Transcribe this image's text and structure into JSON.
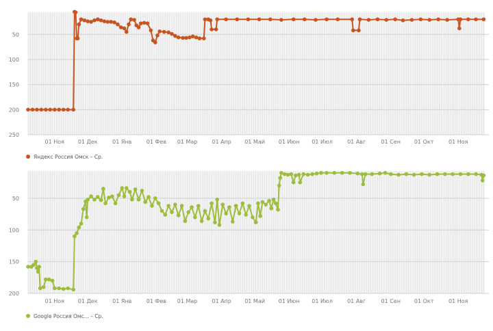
{
  "chart_data": [
    {
      "type": "line",
      "ylim": [
        6,
        250
      ],
      "y_reversed": true,
      "y_ticks": [
        50,
        100,
        150,
        200,
        250
      ],
      "x_tick_labels": [
        "01 Ноя",
        "01 Дек",
        "01 Янв",
        "01 Фев",
        "01 Мар",
        "01 Апр",
        "01 Май",
        "01 Июн",
        "01 Июл",
        "01 Авг",
        "01 Сен",
        "01 Окт",
        "01 Ноя"
      ],
      "x_range": [
        "08 Окт",
        "25 Ноя"
      ],
      "grid": true,
      "legend_position": "bottom-left",
      "series": [
        {
          "name": "Яндекс Россия Омск – Ср.",
          "color": "#c9531f",
          "points": [
            [
              "08 Окт",
              200
            ],
            [
              "12 Окт",
              200
            ],
            [
              "16 Окт",
              200
            ],
            [
              "20 Окт",
              200
            ],
            [
              "24 Окт",
              200
            ],
            [
              "28 Окт",
              200
            ],
            [
              "01 Ноя",
              200
            ],
            [
              "05 Ноя",
              200
            ],
            [
              "09 Ноя",
              200
            ],
            [
              "13 Ноя",
              200
            ],
            [
              "18 Ноя",
              200
            ],
            [
              "19 Ноя",
              5
            ],
            [
              "20 Ноя",
              6
            ],
            [
              "21 Ноя",
              58
            ],
            [
              "22 Ноя",
              58
            ],
            [
              "23 Ноя",
              30
            ],
            [
              "25 Ноя",
              20
            ],
            [
              "28 Ноя",
              22
            ],
            [
              "01 Дек",
              24
            ],
            [
              "04 Дек",
              25
            ],
            [
              "07 Дек",
              22
            ],
            [
              "10 Дек",
              20
            ],
            [
              "13 Дек",
              22
            ],
            [
              "16 Дек",
              24
            ],
            [
              "19 Дек",
              25
            ],
            [
              "22 Дек",
              25
            ],
            [
              "25 Дек",
              26
            ],
            [
              "28 Дек",
              30
            ],
            [
              "31 Дек",
              36
            ],
            [
              "03 Янв",
              38
            ],
            [
              "05 Янв",
              45
            ],
            [
              "07 Янв",
              30
            ],
            [
              "09 Янв",
              20
            ],
            [
              "12 Янв",
              21
            ],
            [
              "14 Янв",
              32
            ],
            [
              "16 Янв",
              36
            ],
            [
              "18 Янв",
              28
            ],
            [
              "21 Янв",
              27
            ],
            [
              "24 Янв",
              28
            ],
            [
              "27 Янв",
              42
            ],
            [
              "29 Янв",
              62
            ],
            [
              "31 Янв",
              66
            ],
            [
              "02 Фев",
              52
            ],
            [
              "04 Фев",
              44
            ],
            [
              "08 Фев",
              45
            ],
            [
              "12 Фев",
              46
            ],
            [
              "15 Фев",
              49
            ],
            [
              "18 Фев",
              53
            ],
            [
              "21 Фев",
              56
            ],
            [
              "25 Фев",
              57
            ],
            [
              "28 Фев",
              57
            ],
            [
              "03 Мар",
              56
            ],
            [
              "06 Мар",
              54
            ],
            [
              "09 Мар",
              56
            ],
            [
              "12 Мар",
              58
            ],
            [
              "16 Мар",
              58
            ],
            [
              "17 Мар",
              20
            ],
            [
              "20 Мар",
              20
            ],
            [
              "22 Мар",
              22
            ],
            [
              "23 Мар",
              40
            ],
            [
              "27 Мар",
              40
            ],
            [
              "28 Мар",
              20
            ],
            [
              "05 Апр",
              20
            ],
            [
              "15 Апр",
              20
            ],
            [
              "25 Апр",
              20
            ],
            [
              "05 Май",
              20
            ],
            [
              "15 Май",
              20
            ],
            [
              "25 Май",
              21
            ],
            [
              "05 Июн",
              20
            ],
            [
              "15 Июн",
              20
            ],
            [
              "25 Июн",
              21
            ],
            [
              "05 Июл",
              20
            ],
            [
              "15 Июл",
              20
            ],
            [
              "28 Июл",
              20
            ],
            [
              "29 Июл",
              42
            ],
            [
              "03 Авг",
              42
            ],
            [
              "04 Авг",
              20
            ],
            [
              "12 Авг",
              21
            ],
            [
              "20 Авг",
              20
            ],
            [
              "28 Авг",
              21
            ],
            [
              "05 Сен",
              20
            ],
            [
              "12 Сен",
              22
            ],
            [
              "20 Сен",
              21
            ],
            [
              "28 Сен",
              20
            ],
            [
              "06 Окт",
              21
            ],
            [
              "14 Окт",
              20
            ],
            [
              "22 Окт",
              21
            ],
            [
              "01 Ноя",
              20
            ],
            [
              "02 Ноя",
              38
            ],
            [
              "03 Ноя",
              20
            ],
            [
              "10 Ноя",
              20
            ],
            [
              "17 Ноя",
              20
            ],
            [
              "24 Ноя",
              20
            ]
          ]
        }
      ]
    },
    {
      "type": "line",
      "ylim": [
        7,
        200
      ],
      "y_reversed": true,
      "y_ticks": [
        50,
        100,
        150,
        200
      ],
      "x_tick_labels": [
        "01 Ноя",
        "01 Дек",
        "01 Янв",
        "01 Фев",
        "01 Мар",
        "01 Апр",
        "01 Май",
        "01 Июн",
        "01 Июл",
        "01 Авг",
        "01 Сен",
        "01 Окт",
        "01 Ноя"
      ],
      "x_range": [
        "08 Окт",
        "25 Ноя"
      ],
      "grid": true,
      "legend_position": "bottom-left",
      "series": [
        {
          "name": "Google Россия Омс... – Ср.",
          "color": "#9dbd3d",
          "points": [
            [
              "08 Окт",
              158
            ],
            [
              "11 Окт",
              158
            ],
            [
              "13 Окт",
              155
            ],
            [
              "15 Окт",
              150
            ],
            [
              "16 Окт",
              160
            ],
            [
              "17 Окт",
              166
            ],
            [
              "18 Окт",
              158
            ],
            [
              "19 Окт",
              192
            ],
            [
              "22 Окт",
              190
            ],
            [
              "24 Окт",
              178
            ],
            [
              "27 Окт",
              178
            ],
            [
              "30 Окт",
              180
            ],
            [
              "01 Ноя",
              192
            ],
            [
              "05 Ноя",
              192
            ],
            [
              "09 Ноя",
              193
            ],
            [
              "13 Ноя",
              192
            ],
            [
              "18 Ноя",
              194
            ],
            [
              "19 Ноя",
              110
            ],
            [
              "21 Ноя",
              105
            ],
            [
              "23 Ноя",
              96
            ],
            [
              "25 Ноя",
              90
            ],
            [
              "27 Ноя",
              67
            ],
            [
              "29 Ноя",
              55
            ],
            [
              "30 Ноя",
              80
            ],
            [
              "01 Дек",
              52
            ],
            [
              "04 Дек",
              47
            ],
            [
              "07 Дек",
              52
            ],
            [
              "10 Дек",
              48
            ],
            [
              "13 Дек",
              53
            ],
            [
              "15 Дек",
              35
            ],
            [
              "17 Дек",
              58
            ],
            [
              "20 Дек",
              49
            ],
            [
              "23 Дек",
              47
            ],
            [
              "26 Дек",
              58
            ],
            [
              "29 Дек",
              45
            ],
            [
              "01 Янв",
              34
            ],
            [
              "03 Янв",
              47
            ],
            [
              "05 Янв",
              34
            ],
            [
              "08 Янв",
              40
            ],
            [
              "10 Янв",
              52
            ],
            [
              "13 Янв",
              36
            ],
            [
              "16 Янв",
              52
            ],
            [
              "19 Янв",
              38
            ],
            [
              "22 Янв",
              56
            ],
            [
              "25 Янв",
              48
            ],
            [
              "28 Янв",
              62
            ],
            [
              "31 Янв",
              50
            ],
            [
              "03 Фев",
              58
            ],
            [
              "06 Фев",
              70
            ],
            [
              "09 Фев",
              76
            ],
            [
              "12 Фев",
              62
            ],
            [
              "15 Фев",
              72
            ],
            [
              "18 Фев",
              60
            ],
            [
              "21 Фев",
              77
            ],
            [
              "24 Фев",
              62
            ],
            [
              "27 Фев",
              86
            ],
            [
              "02 Мар",
              72
            ],
            [
              "05 Мар",
              64
            ],
            [
              "08 Мар",
              80
            ],
            [
              "11 Мар",
              62
            ],
            [
              "14 Мар",
              86
            ],
            [
              "17 Мар",
              70
            ],
            [
              "20 Мар",
              82
            ],
            [
              "23 Мар",
              58
            ],
            [
              "26 Мар",
              88
            ],
            [
              "28 Мар",
              52
            ],
            [
              "30 Мар",
              92
            ],
            [
              "02 Апр",
              60
            ],
            [
              "05 Апр",
              74
            ],
            [
              "08 Апр",
              64
            ],
            [
              "11 Апр",
              87
            ],
            [
              "14 Апр",
              62
            ],
            [
              "17 Апр",
              74
            ],
            [
              "20 Апр",
              58
            ],
            [
              "23 Апр",
              76
            ],
            [
              "26 Апр",
              62
            ],
            [
              "29 Апр",
              80
            ],
            [
              "02 Май",
              88
            ],
            [
              "04 Май",
              58
            ],
            [
              "06 Май",
              78
            ],
            [
              "08 Май",
              56
            ],
            [
              "11 Май",
              60
            ],
            [
              "14 Май",
              54
            ],
            [
              "16 Май",
              66
            ],
            [
              "18 Май",
              52
            ],
            [
              "20 Май",
              58
            ],
            [
              "22 Май",
              68
            ],
            [
              "23 Май",
              30
            ],
            [
              "24 Май",
              18
            ],
            [
              "25 Май",
              10
            ],
            [
              "28 Май",
              12
            ],
            [
              "31 Май",
              13
            ],
            [
              "03 Июн",
              12
            ],
            [
              "05 Июн",
              25
            ],
            [
              "07 Июн",
              14
            ],
            [
              "10 Июн",
              13
            ],
            [
              "11 Июн",
              25
            ],
            [
              "14 Июн",
              12
            ],
            [
              "18 Июн",
              13
            ],
            [
              "22 Июн",
              12
            ],
            [
              "26 Июн",
              11
            ],
            [
              "30 Июн",
              10
            ],
            [
              "05 Июл",
              10
            ],
            [
              "12 Июл",
              10
            ],
            [
              "19 Июл",
              10
            ],
            [
              "26 Июл",
              10
            ],
            [
              "02 Авг",
              11
            ],
            [
              "06 Авг",
              12
            ],
            [
              "07 Авг",
              28
            ],
            [
              "09 Авг",
              12
            ],
            [
              "15 Авг",
              12
            ],
            [
              "22 Авг",
              11
            ],
            [
              "27 Авг",
              10
            ],
            [
              "01 Сен",
              12
            ],
            [
              "08 Сен",
              13
            ],
            [
              "15 Сен",
              12
            ],
            [
              "22 Сен",
              13
            ],
            [
              "29 Сен",
              12
            ],
            [
              "06 Окт",
              13
            ],
            [
              "13 Окт",
              12
            ],
            [
              "20 Окт",
              12
            ],
            [
              "27 Окт",
              12
            ],
            [
              "03 Ноя",
              12
            ],
            [
              "10 Ноя",
              12
            ],
            [
              "17 Ноя",
              12
            ],
            [
              "22 Ноя",
              13
            ],
            [
              "23 Ноя",
              22
            ],
            [
              "24 Ноя",
              14
            ]
          ]
        }
      ]
    }
  ]
}
